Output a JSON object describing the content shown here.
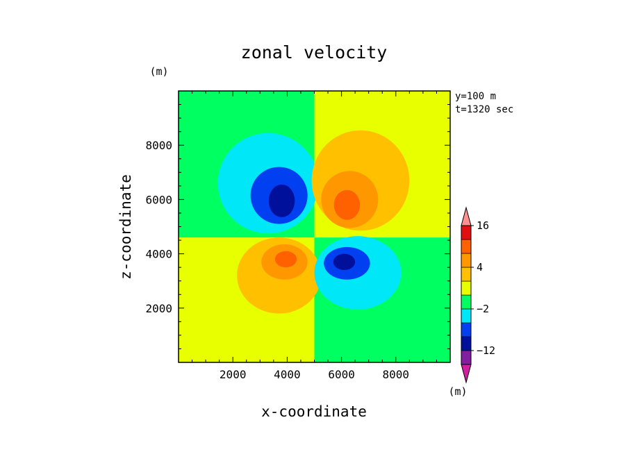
{
  "chart_data": {
    "type": "heatmap",
    "title": "zonal velocity",
    "xlabel": "x-coordinate",
    "ylabel": "z-coordinate",
    "x_unit": "(m)",
    "y_unit": "(m)",
    "info_lines": [
      "y=100 m",
      "t=1320 sec"
    ],
    "xlim": [
      0,
      10000
    ],
    "ylim": [
      0,
      10000
    ],
    "x_ticks": [
      2000,
      4000,
      6000,
      8000
    ],
    "y_ticks": [
      2000,
      4000,
      6000,
      8000
    ],
    "x_tick_labels": [
      "2000",
      "4000",
      "6000",
      "8000"
    ],
    "y_tick_labels": [
      "2000",
      "4000",
      "6000",
      "8000"
    ],
    "colorbar": {
      "unit": "(m)",
      "boundaries": [
        -20,
        -16,
        -12,
        -8,
        -4,
        -2,
        0,
        2,
        4,
        8,
        12,
        16,
        20
      ],
      "colors": [
        "#d020a0",
        "#8020a0",
        "#00109a",
        "#0040f0",
        "#00e8f8",
        "#00ff60",
        "#e8ff00",
        "#ffc000",
        "#ff9800",
        "#ff6000",
        "#e01010",
        "#ff9090"
      ],
      "labels": [
        {
          "text": "16",
          "value": 16
        },
        {
          "text": "4",
          "value": 4
        },
        {
          "text": "−2",
          "value": -2
        },
        {
          "text": "−12",
          "value": -12
        }
      ]
    },
    "background_regions": [
      {
        "name": "upper-left",
        "x": [
          0,
          5000
        ],
        "z": [
          4600,
          10000
        ],
        "value": -1
      },
      {
        "name": "upper-right",
        "x": [
          5000,
          10000
        ],
        "z": [
          4600,
          10000
        ],
        "value": 1
      },
      {
        "name": "lower-left",
        "x": [
          0,
          5000
        ],
        "z": [
          0,
          4600
        ],
        "value": 1
      },
      {
        "name": "lower-right",
        "x": [
          5000,
          10000
        ],
        "z": [
          0,
          4600
        ],
        "value": -1
      }
    ],
    "vortices": [
      {
        "name": "upper-left-negative",
        "levels": [
          {
            "value": -3,
            "cx": 3300,
            "cz": 6600,
            "rx": 1850,
            "rz": 1850
          },
          {
            "value": -8,
            "cx": 3700,
            "cz": 6150,
            "rx": 1050,
            "rz": 1050
          },
          {
            "value": -12,
            "cx": 3800,
            "cz": 5950,
            "rx": 480,
            "rz": 600
          }
        ]
      },
      {
        "name": "upper-right-positive",
        "levels": [
          {
            "value": 3,
            "cx": 6700,
            "cz": 6700,
            "rx": 1800,
            "rz": 1850
          },
          {
            "value": 6,
            "cx": 6300,
            "cz": 6000,
            "rx": 1050,
            "rz": 1050
          },
          {
            "value": 10,
            "cx": 6200,
            "cz": 5800,
            "rx": 480,
            "rz": 550
          }
        ]
      },
      {
        "name": "lower-left-positive",
        "levels": [
          {
            "value": 3,
            "cx": 3700,
            "cz": 3200,
            "rx": 1550,
            "rz": 1400
          },
          {
            "value": 6,
            "cx": 3900,
            "cz": 3700,
            "rx": 850,
            "rz": 650
          },
          {
            "value": 10,
            "cx": 3950,
            "cz": 3800,
            "rx": 400,
            "rz": 300
          }
        ]
      },
      {
        "name": "lower-right-negative",
        "levels": [
          {
            "value": -3,
            "cx": 6600,
            "cz": 3300,
            "rx": 1600,
            "rz": 1350
          },
          {
            "value": -8,
            "cx": 6200,
            "cz": 3650,
            "rx": 850,
            "rz": 600
          },
          {
            "value": -12,
            "cx": 6100,
            "cz": 3700,
            "rx": 400,
            "rz": 300
          }
        ]
      }
    ]
  }
}
